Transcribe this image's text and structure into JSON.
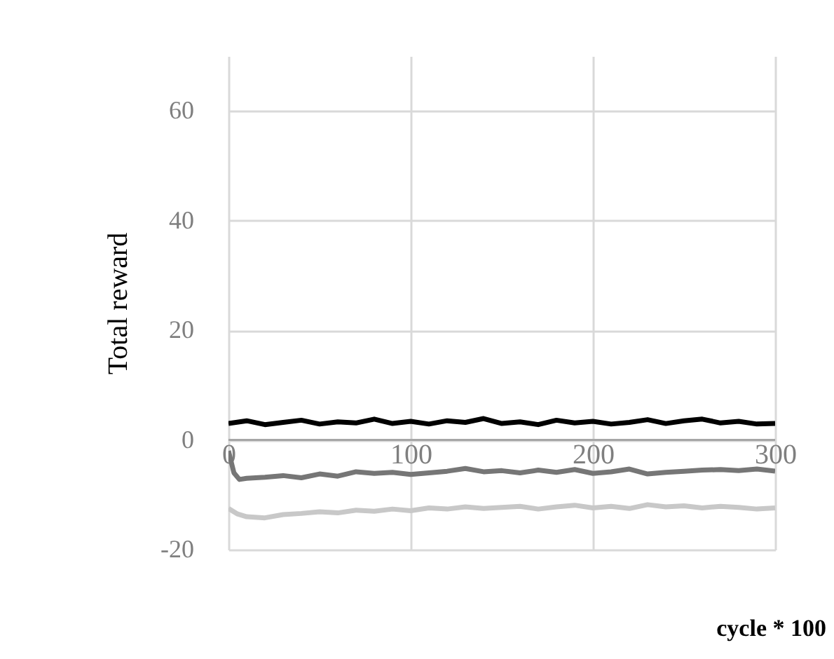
{
  "chart_data": {
    "type": "line",
    "xlabel": "cycle * 100",
    "ylabel": "Total reward",
    "xlim": [
      0,
      300
    ],
    "xticks": [
      0,
      100,
      200,
      300
    ],
    "ylim": [
      -20,
      70
    ],
    "yticks": [
      -20,
      0,
      20,
      40,
      60
    ],
    "grid": true,
    "legend": false,
    "marker": "none",
    "line_style": "solid",
    "series": [
      {
        "color": "#000000",
        "x": [
          0,
          10,
          20,
          30,
          40,
          50,
          60,
          70,
          80,
          90,
          100,
          110,
          120,
          130,
          140,
          150,
          160,
          170,
          180,
          190,
          200,
          210,
          220,
          230,
          240,
          250,
          260,
          270,
          280,
          290,
          300
        ],
        "values": [
          3,
          3.5,
          2.8,
          3.2,
          3.6,
          2.9,
          3.3,
          3.1,
          3.8,
          3,
          3.4,
          2.9,
          3.5,
          3.2,
          3.9,
          3,
          3.3,
          2.8,
          3.6,
          3.1,
          3.4,
          2.9,
          3.2,
          3.7,
          3,
          3.5,
          3.8,
          3.1,
          3.4,
          2.9,
          3
        ]
      },
      {
        "color": "#767676",
        "x": [
          0,
          3,
          6,
          10,
          20,
          30,
          40,
          50,
          60,
          70,
          80,
          90,
          100,
          110,
          120,
          130,
          140,
          150,
          160,
          170,
          180,
          190,
          200,
          210,
          220,
          230,
          240,
          250,
          260,
          270,
          280,
          290,
          300
        ],
        "values": [
          -2,
          -6,
          -7.2,
          -7,
          -6.8,
          -6.5,
          -6.9,
          -6.2,
          -6.6,
          -5.8,
          -6.1,
          -5.9,
          -6.3,
          -6,
          -5.7,
          -5.2,
          -5.8,
          -5.6,
          -6,
          -5.5,
          -5.9,
          -5.4,
          -6.1,
          -5.8,
          -5.3,
          -6.2,
          -5.9,
          -5.7,
          -5.5,
          -5.4,
          -5.6,
          -5.3,
          -5.7
        ]
      },
      {
        "color": "#c8c8c8",
        "x": [
          0,
          5,
          10,
          20,
          30,
          40,
          50,
          60,
          70,
          80,
          90,
          100,
          110,
          120,
          130,
          140,
          150,
          160,
          170,
          180,
          190,
          200,
          210,
          220,
          230,
          240,
          250,
          260,
          270,
          280,
          290,
          300
        ],
        "values": [
          -12.5,
          -13.5,
          -14,
          -14.2,
          -13.6,
          -13.4,
          -13.1,
          -13.3,
          -12.8,
          -13,
          -12.6,
          -12.9,
          -12.4,
          -12.6,
          -12.2,
          -12.5,
          -12.3,
          -12.1,
          -12.6,
          -12.2,
          -11.9,
          -12.4,
          -12.1,
          -12.5,
          -11.8,
          -12.2,
          -12,
          -12.4,
          -12.1,
          -12.3,
          -12.6,
          -12.4
        ]
      }
    ]
  }
}
